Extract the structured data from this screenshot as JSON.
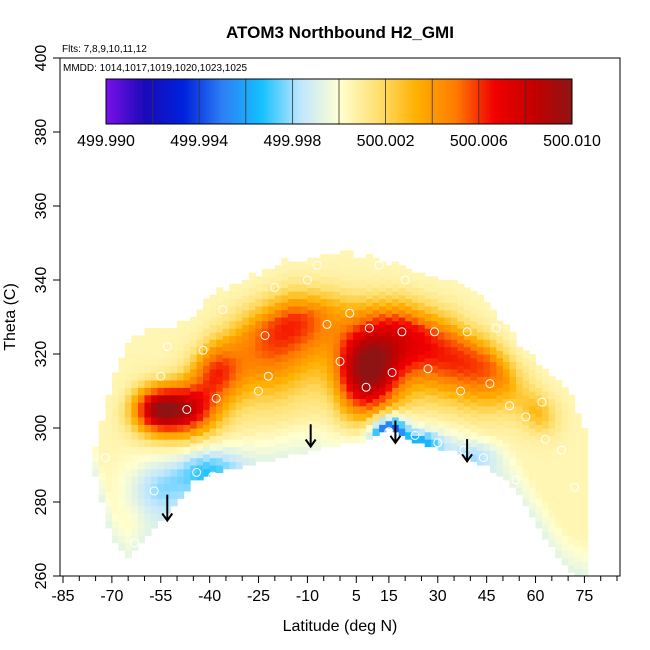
{
  "chart_data": {
    "type": "heatmap",
    "title": "ATOM3 Northbound H2_GMI",
    "annotations": {
      "flights": "Flts: 7,8,9,10,11,12",
      "dates": "MMDD: 1014,1017,1019,1020,1023,1025"
    },
    "xlabel": "Latitude (deg N)",
    "ylabel": "Theta (C)",
    "xlim": [
      -85,
      85
    ],
    "ylim": [
      260,
      400
    ],
    "x_ticks": [
      -85,
      -70,
      -55,
      -40,
      -25,
      -10,
      5,
      15,
      30,
      45,
      60,
      75
    ],
    "x_tick_labels": [
      "-85",
      "-70",
      "-55",
      "-40",
      "-25",
      "-10",
      "5",
      "15",
      "30",
      "45",
      "60",
      "75"
    ],
    "y_ticks": [
      260,
      280,
      300,
      320,
      340,
      360,
      380,
      400
    ],
    "y_tick_labels": [
      "260",
      "280",
      "300",
      "320",
      "340",
      "360",
      "380",
      "400"
    ],
    "colorbar": {
      "min": 499.99,
      "max": 500.01,
      "labels": [
        "499.990",
        "499.994",
        "499.998",
        "500.002",
        "500.006",
        "500.010"
      ],
      "colors": [
        "#7a10e8",
        "#1a0ab8",
        "#0022dd",
        "#2d7ff5",
        "#13c0ff",
        "#bfe6ff",
        "#ffffd0",
        "#ffe070",
        "#ffb000",
        "#ff7c00",
        "#f20000",
        "#c40000",
        "#8e1414"
      ]
    },
    "field": {
      "lat": [
        -75,
        -70,
        -65,
        -60,
        -55,
        -50,
        -45,
        -40,
        -35,
        -30,
        -25,
        -20,
        -15,
        -10,
        -5,
        0,
        5,
        10,
        15,
        20,
        25,
        30,
        35,
        40,
        45,
        50,
        55,
        60,
        65,
        70,
        75
      ],
      "theta_floor": [
        287,
        270,
        265,
        270,
        275,
        280,
        286,
        288,
        289,
        290,
        291,
        292,
        293,
        294,
        295,
        296,
        296.5,
        297.5,
        300,
        298,
        296,
        295,
        294,
        292,
        290,
        287,
        282,
        275,
        268,
        262,
        260
      ],
      "theta_top": [
        295,
        312,
        322,
        325,
        326,
        327,
        330,
        335,
        337,
        339,
        341,
        343,
        345,
        345,
        346,
        347,
        346,
        345,
        344,
        343,
        341,
        340,
        339,
        336,
        333,
        328,
        322,
        318,
        313,
        310,
        300
      ],
      "anomalies": [
        {
          "lat": -48,
          "theta": 305,
          "value": 500.008,
          "rlat": 10,
          "rtheta": 7
        },
        {
          "lat": -57,
          "theta": 305,
          "value": 500.006,
          "rlat": 7,
          "rtheta": 6
        },
        {
          "lat": -38,
          "theta": 315,
          "value": 500.005,
          "rlat": 8,
          "rtheta": 8
        },
        {
          "lat": -22,
          "theta": 322,
          "value": 500.005,
          "rlat": 14,
          "rtheta": 14
        },
        {
          "lat": -10,
          "theta": 330,
          "value": 500.004,
          "rlat": 12,
          "rtheta": 10
        },
        {
          "lat": 8,
          "theta": 315,
          "value": 500.009,
          "rlat": 10,
          "rtheta": 12
        },
        {
          "lat": 20,
          "theta": 325,
          "value": 500.006,
          "rlat": 14,
          "rtheta": 12
        },
        {
          "lat": 35,
          "theta": 318,
          "value": 500.004,
          "rlat": 12,
          "rtheta": 10
        },
        {
          "lat": 48,
          "theta": 315,
          "value": 500.004,
          "rlat": 12,
          "rtheta": 10
        },
        {
          "lat": 62,
          "theta": 305,
          "value": 500.003,
          "rlat": 6,
          "rtheta": 6
        },
        {
          "lat": 15,
          "theta": 299,
          "value": 499.992,
          "rlat": 5,
          "rtheta": 4
        },
        {
          "lat": 25,
          "theta": 296,
          "value": 499.996,
          "rlat": 6,
          "rtheta": 3
        },
        {
          "lat": -40,
          "theta": 288,
          "value": 499.997,
          "rlat": 10,
          "rtheta": 6
        },
        {
          "lat": -55,
          "theta": 283,
          "value": 499.998,
          "rlat": 10,
          "rtheta": 8
        },
        {
          "lat": 40,
          "theta": 292,
          "value": 499.998,
          "rlat": 8,
          "rtheta": 4
        },
        {
          "lat": -3,
          "theta": 310,
          "value": 500.0,
          "rlat": 4,
          "rtheta": 14
        }
      ],
      "background_value": 500.0005
    },
    "points": [
      {
        "lat": -47,
        "theta": 305
      },
      {
        "lat": -38,
        "theta": 308
      },
      {
        "lat": -42,
        "theta": 321
      },
      {
        "lat": -36,
        "theta": 332
      },
      {
        "lat": -25,
        "theta": 310
      },
      {
        "lat": -23,
        "theta": 325
      },
      {
        "lat": -22,
        "theta": 314
      },
      {
        "lat": -20,
        "theta": 338
      },
      {
        "lat": -10,
        "theta": 340
      },
      {
        "lat": -7,
        "theta": 344
      },
      {
        "lat": -4,
        "theta": 328
      },
      {
        "lat": 0,
        "theta": 318
      },
      {
        "lat": 3,
        "theta": 331
      },
      {
        "lat": 8,
        "theta": 311
      },
      {
        "lat": 9,
        "theta": 327
      },
      {
        "lat": 12,
        "theta": 344
      },
      {
        "lat": 16,
        "theta": 315
      },
      {
        "lat": 19,
        "theta": 326
      },
      {
        "lat": 20,
        "theta": 340
      },
      {
        "lat": 27,
        "theta": 316
      },
      {
        "lat": 29,
        "theta": 326
      },
      {
        "lat": 37,
        "theta": 310
      },
      {
        "lat": 39,
        "theta": 326
      },
      {
        "lat": 46,
        "theta": 312
      },
      {
        "lat": 48,
        "theta": 327
      },
      {
        "lat": 52,
        "theta": 306
      },
      {
        "lat": 57,
        "theta": 303
      },
      {
        "lat": 62,
        "theta": 307
      },
      {
        "lat": 63,
        "theta": 297
      },
      {
        "lat": 68,
        "theta": 294
      },
      {
        "lat": 54,
        "theta": 286
      },
      {
        "lat": 44,
        "theta": 292
      },
      {
        "lat": 38,
        "theta": 294
      },
      {
        "lat": 30,
        "theta": 296
      },
      {
        "lat": 23,
        "theta": 298
      },
      {
        "lat": 15,
        "theta": 299
      },
      {
        "lat": -39,
        "theta": 287
      },
      {
        "lat": -44,
        "theta": 288
      },
      {
        "lat": -57,
        "theta": 283
      },
      {
        "lat": -63,
        "theta": 269
      },
      {
        "lat": -70,
        "theta": 263
      },
      {
        "lat": -72,
        "theta": 292
      },
      {
        "lat": -53,
        "theta": 322
      },
      {
        "lat": -55,
        "theta": 314
      },
      {
        "lat": 72,
        "theta": 284
      }
    ],
    "arrows": [
      {
        "lat": -53,
        "theta_top": 282,
        "theta_tip": 275
      },
      {
        "lat": -9,
        "theta_top": 301,
        "theta_tip": 295
      },
      {
        "lat": 17,
        "theta_top": 302,
        "theta_tip": 296
      },
      {
        "lat": 39,
        "theta_top": 297,
        "theta_tip": 291
      }
    ]
  }
}
